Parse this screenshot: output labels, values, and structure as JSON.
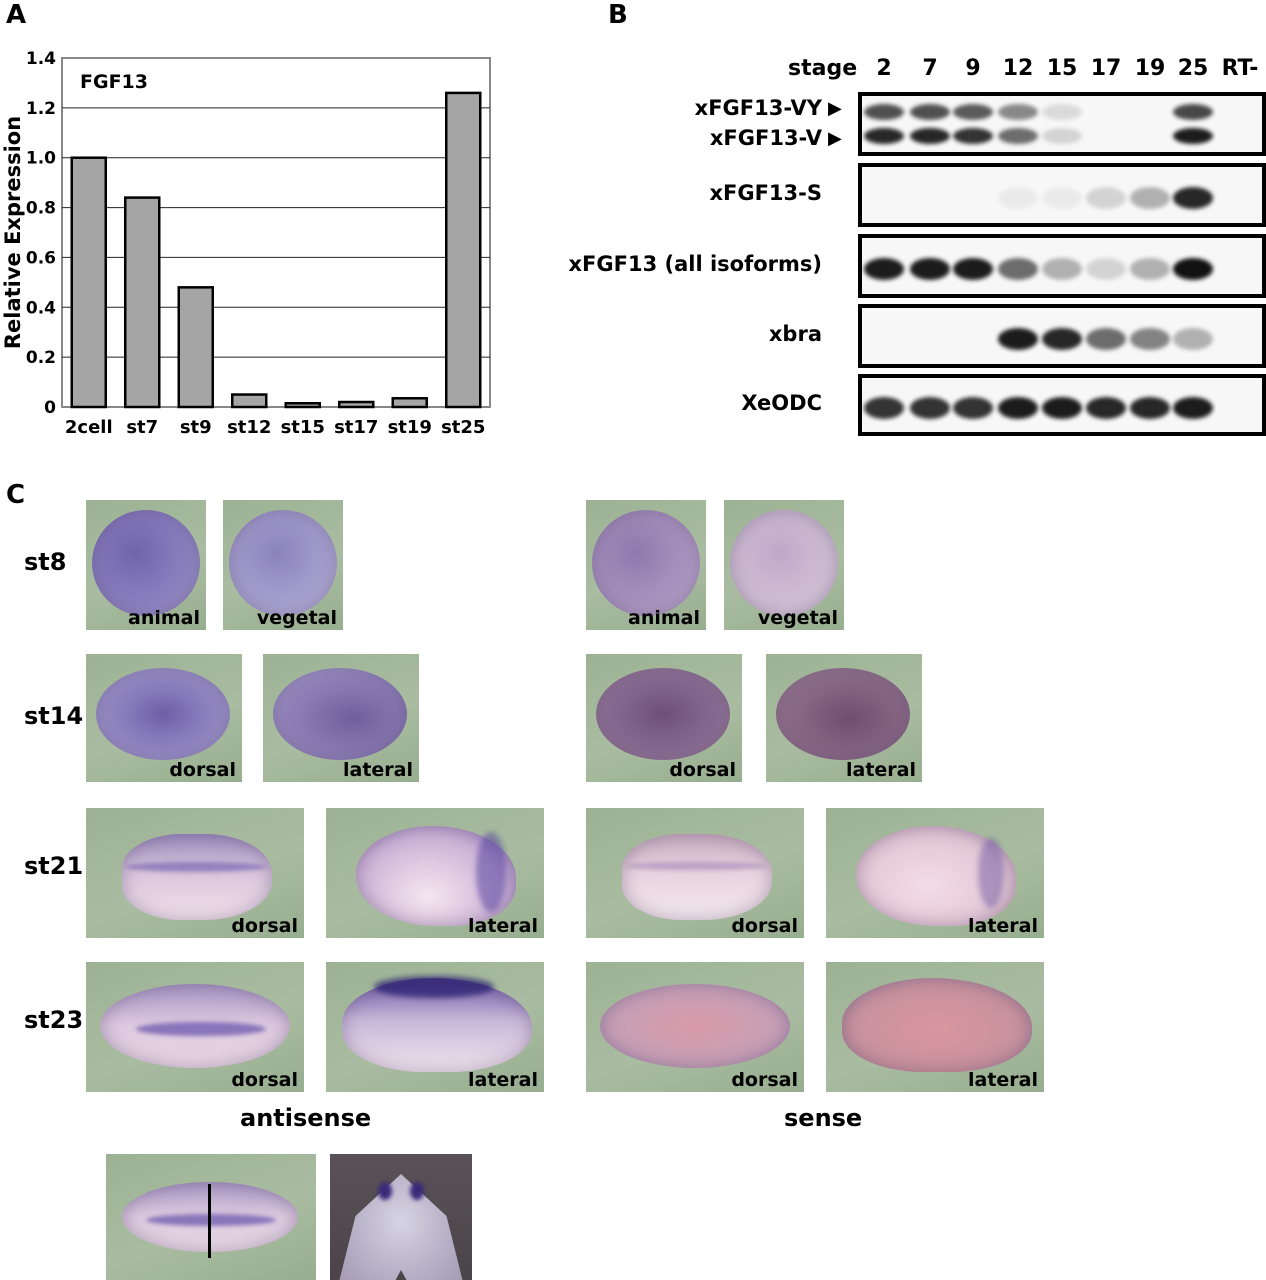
{
  "panels": {
    "a": "A",
    "b": "B",
    "c": "C"
  },
  "chart_data": {
    "type": "bar",
    "title": "FGF13",
    "ylabel": "Relative Expression",
    "xlabel": "",
    "categories": [
      "2cell",
      "st7",
      "st9",
      "st12",
      "st15",
      "st17",
      "st19",
      "st25"
    ],
    "values": [
      1.0,
      0.84,
      0.48,
      0.05,
      0.015,
      0.02,
      0.035,
      1.26
    ],
    "ylim": [
      0,
      1.4
    ],
    "yticks": [
      "0",
      "0.2",
      "0.4",
      "0.6",
      "0.8",
      "1.0",
      "1.2",
      "1.4"
    ],
    "bar_color": "#a5a5a5",
    "grid": true
  },
  "gel": {
    "stage_label": "stage",
    "stages": [
      "2",
      "7",
      "9",
      "12",
      "15",
      "17",
      "19",
      "25",
      "RT-"
    ],
    "rows": [
      {
        "labels": [
          "xFGF13-VY",
          "xFGF13-V"
        ],
        "intensities": [
          0.9,
          0.9,
          0.85,
          0.6,
          0.15,
          0.0,
          0.0,
          0.95,
          0.0
        ]
      },
      {
        "labels": [
          "xFGF13-S"
        ],
        "intensities": [
          0.0,
          0.0,
          0.0,
          0.05,
          0.05,
          0.15,
          0.3,
          0.9,
          0.0
        ]
      },
      {
        "labels": [
          "xFGF13 (all isoforms)"
        ],
        "intensities": [
          0.95,
          0.95,
          0.95,
          0.6,
          0.3,
          0.15,
          0.3,
          1.0,
          0.0
        ]
      },
      {
        "labels": [
          "xbra"
        ],
        "intensities": [
          0.0,
          0.0,
          0.0,
          0.95,
          0.9,
          0.6,
          0.5,
          0.3,
          0.0
        ]
      },
      {
        "labels": [
          "XeODC"
        ],
        "intensities": [
          0.85,
          0.85,
          0.85,
          0.95,
          0.95,
          0.9,
          0.9,
          0.95,
          0.0
        ]
      }
    ]
  },
  "insitu": {
    "stages": [
      "st8",
      "st14",
      "st21",
      "st23"
    ],
    "views": {
      "animal": "animal",
      "vegetal": "vegetal",
      "dorsal": "dorsal",
      "lateral": "lateral"
    },
    "probes": {
      "antisense": "antisense",
      "sense": "sense"
    }
  },
  "colors": {
    "photo_background": "#a3b89b",
    "stain_purple": "#6b5aa6",
    "sense_pink": "#c49aa6"
  }
}
